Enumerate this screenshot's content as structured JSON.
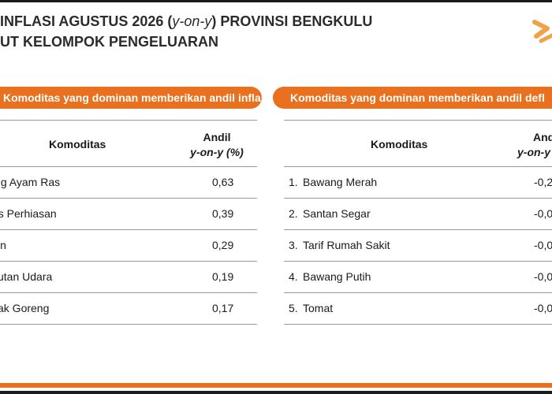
{
  "title": {
    "line1_pre": "INFLASI AGUSTUS 2026 (",
    "line1_italic": "y-on-y",
    "line1_post": ") PROVINSI BENGKULU",
    "line2": "UT KELOMPOK PENGELUARAN"
  },
  "inflation": {
    "banner": "Komoditas yang dominan memberikan andil inflasi:",
    "col_commodity": "Komoditas",
    "col_andil_1": "Andil",
    "col_andil_2": "y-on-y (%)",
    "rows": [
      {
        "name": "ing Ayam Ras",
        "value": "0,63"
      },
      {
        "name": "as Perhiasan",
        "value": "0,39"
      },
      {
        "name": "sin",
        "value": "0,29"
      },
      {
        "name": "kutan Udara",
        "value": "0,19"
      },
      {
        "name": "yak Goreng",
        "value": "0,17"
      }
    ]
  },
  "deflation": {
    "banner": "Komoditas yang dominan memberikan andil defl",
    "col_commodity": "Komoditas",
    "col_andil_1": "And",
    "col_andil_2": "y-on-y",
    "rows": [
      {
        "num": "1.",
        "name": "Bawang Merah",
        "value": "-0,2"
      },
      {
        "num": "2.",
        "name": "Santan Segar",
        "value": "-0,0"
      },
      {
        "num": "3.",
        "name": "Tarif Rumah Sakit",
        "value": "-0,0"
      },
      {
        "num": "4.",
        "name": "Bawang Putih",
        "value": "-0,0"
      },
      {
        "num": "5.",
        "name": "Tomat",
        "value": "-0,0"
      }
    ]
  },
  "colors": {
    "accent": "#e8701e",
    "text": "#1a1a1a"
  },
  "logo_icon": "bps-logo-icon"
}
